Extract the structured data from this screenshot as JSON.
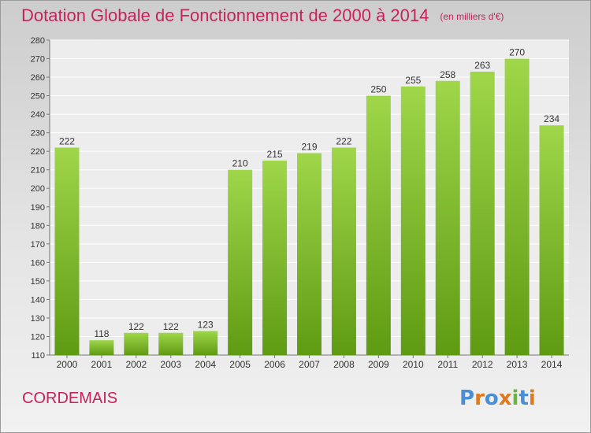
{
  "header": {
    "title": "Dotation Globale de Fonctionnement de 2000 à 2014",
    "subtitle": "(en milliers d'€)"
  },
  "footer": {
    "place": "CORDEMAIS",
    "logo_text": "Proxiti"
  },
  "colors": {
    "title": "#c8225a",
    "bar_top": "#9fd64a",
    "bar_bottom": "#5f9b12",
    "logo_letters": [
      "#4a8fd6",
      "#e07a1f",
      "#4a8fd6",
      "#e07a1f",
      "#6db33f",
      "#4a8fd6",
      "#e07a1f"
    ]
  },
  "chart_data": {
    "type": "bar",
    "categories": [
      "2000",
      "2001",
      "2002",
      "2003",
      "2004",
      "2005",
      "2006",
      "2007",
      "2008",
      "2009",
      "2010",
      "2011",
      "2012",
      "2013",
      "2014"
    ],
    "values": [
      222,
      118,
      122,
      122,
      123,
      210,
      215,
      219,
      222,
      250,
      255,
      258,
      263,
      270,
      234
    ],
    "title": "Dotation Globale de Fonctionnement de 2000 à 2014",
    "subtitle": "(en milliers d'€)",
    "ylim": [
      110,
      280
    ],
    "yticks": [
      110,
      120,
      130,
      140,
      150,
      160,
      170,
      180,
      190,
      200,
      210,
      220,
      230,
      240,
      250,
      260,
      270,
      280
    ],
    "grid": true,
    "data_labels": true
  }
}
